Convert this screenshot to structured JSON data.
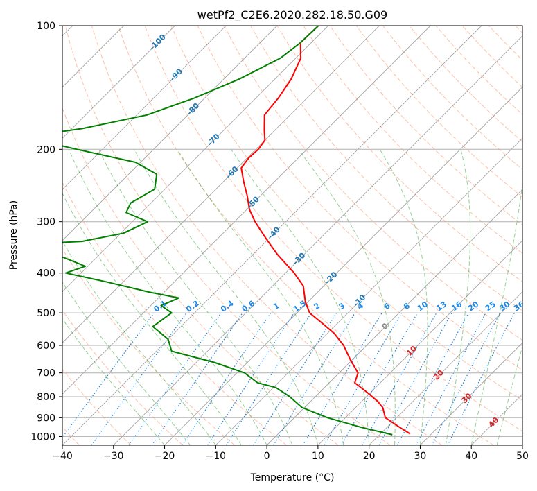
{
  "chart_data": {
    "type": "skew-t",
    "title": "wetPf2_C2E6.2020.282.18.50.G09",
    "xlabel": "Temperature (°C)",
    "ylabel": "Pressure (hPa)",
    "xlim": [
      -40,
      50
    ],
    "ylim": [
      1050,
      100
    ],
    "y_scale": "log",
    "grid": true,
    "skew": 1,
    "xticks": [
      -40,
      -30,
      -20,
      -10,
      0,
      10,
      20,
      30,
      40,
      50
    ],
    "yticks": [
      100,
      200,
      300,
      400,
      500,
      600,
      700,
      800,
      900,
      1000
    ],
    "isotherms_c": [
      -160,
      -150,
      -140,
      -130,
      -120,
      -110,
      -100,
      -90,
      -80,
      -70,
      -60,
      -50,
      -40,
      -30,
      -20,
      -10,
      0,
      10,
      20,
      30,
      40,
      50
    ],
    "dry_adiabat_theta_c": [
      -40,
      -30,
      -20,
      -10,
      0,
      10,
      20,
      30,
      40,
      50,
      60,
      70,
      80,
      90,
      100,
      110,
      120,
      130,
      140,
      150,
      160,
      170,
      180,
      190,
      200,
      210,
      220,
      230,
      240,
      250,
      260
    ],
    "moist_adiabat_start_c": [
      -20,
      -15,
      -10,
      -5,
      0,
      5,
      10,
      15,
      20,
      25,
      30,
      35,
      40,
      45
    ],
    "mixing_ratio_lines": [
      "0.1",
      "0.2",
      "0.4",
      "0.6",
      "1",
      "1.5",
      "2",
      "3",
      "4",
      "6",
      "8",
      "10",
      "13",
      "16",
      "20",
      "25",
      "30",
      "36"
    ],
    "mixing_ratio_values": [
      0.1,
      0.2,
      0.4,
      0.6,
      1,
      1.5,
      2,
      3,
      4,
      6,
      8,
      10,
      13,
      16,
      20,
      25,
      30,
      36
    ],
    "temperature_labels": [
      {
        "text": "-100",
        "p": 110,
        "t": -100
      },
      {
        "text": "-90",
        "p": 132,
        "t": -90
      },
      {
        "text": "-80",
        "p": 160,
        "t": -80
      },
      {
        "text": "-70",
        "p": 190,
        "t": -70
      },
      {
        "text": "-60",
        "p": 228,
        "t": -60
      },
      {
        "text": "-50",
        "p": 270,
        "t": -50
      },
      {
        "text": "-40",
        "p": 320,
        "t": -40
      },
      {
        "text": "-30",
        "p": 370,
        "t": -30
      },
      {
        "text": "-20",
        "p": 412,
        "t": -20
      },
      {
        "text": "-10",
        "p": 468,
        "t": -10
      },
      {
        "text": "0",
        "p": 540,
        "t": 0
      },
      {
        "text": "10",
        "p": 620,
        "t": 10
      },
      {
        "text": "20",
        "p": 710,
        "t": 20
      },
      {
        "text": "30",
        "p": 808,
        "t": 30
      },
      {
        "text": "40",
        "p": 925,
        "t": 40
      }
    ],
    "series": [
      {
        "color": "#ff0000",
        "points": [
          [
            100,
            -71.9
          ],
          [
            110,
            -72.1
          ],
          [
            120,
            -69.0
          ],
          [
            135,
            -66.8
          ],
          [
            150,
            -65.6
          ],
          [
            165,
            -65.0
          ],
          [
            180,
            -62.0
          ],
          [
            190,
            -60.0
          ],
          [
            200,
            -59.5
          ],
          [
            210,
            -59.7
          ],
          [
            222,
            -59.2
          ],
          [
            240,
            -56.0
          ],
          [
            260,
            -52.5
          ],
          [
            280,
            -49.5
          ],
          [
            300,
            -46.0
          ],
          [
            330,
            -40.5
          ],
          [
            360,
            -35.3
          ],
          [
            400,
            -28.3
          ],
          [
            430,
            -24.0
          ],
          [
            470,
            -20.5
          ],
          [
            500,
            -17.5
          ],
          [
            530,
            -13.0
          ],
          [
            560,
            -8.8
          ],
          [
            600,
            -4.5
          ],
          [
            650,
            -0.4
          ],
          [
            700,
            3.7
          ],
          [
            740,
            5.0
          ],
          [
            780,
            9.2
          ],
          [
            820,
            13.0
          ],
          [
            850,
            15.3
          ],
          [
            900,
            17.8
          ],
          [
            950,
            22.5
          ],
          [
            985,
            25.8
          ]
        ]
      },
      {
        "color": "#008000",
        "points": [
          [
            100,
            -71.9
          ],
          [
            110,
            -72.1
          ],
          [
            120,
            -73.0
          ],
          [
            135,
            -77.0
          ],
          [
            150,
            -82.0
          ],
          [
            165,
            -88.0
          ],
          [
            178,
            -98.0
          ],
          [
            185,
            -106.0
          ],
          [
            190,
            -104.5
          ],
          [
            200,
            -95.0
          ],
          [
            215,
            -81.0
          ],
          [
            230,
            -74.5
          ],
          [
            250,
            -72.0
          ],
          [
            270,
            -74.0
          ],
          [
            285,
            -73.0
          ],
          [
            300,
            -67.0
          ],
          [
            320,
            -69.5
          ],
          [
            335,
            -76.0
          ],
          [
            345,
            -95.0
          ],
          [
            365,
            -77.0
          ],
          [
            385,
            -70.5
          ],
          [
            400,
            -73.0
          ],
          [
            420,
            -63.5
          ],
          [
            445,
            -53.0
          ],
          [
            460,
            -46.0
          ],
          [
            480,
            -48.0
          ],
          [
            500,
            -44.5
          ],
          [
            540,
            -45.5
          ],
          [
            580,
            -40.0
          ],
          [
            620,
            -37.0
          ],
          [
            660,
            -26.5
          ],
          [
            700,
            -18.5
          ],
          [
            740,
            -14.0
          ],
          [
            760,
            -9.5
          ],
          [
            800,
            -5.0
          ],
          [
            850,
            -0.5
          ],
          [
            900,
            6.5
          ],
          [
            950,
            15.0
          ],
          [
            990,
            22.5
          ]
        ]
      }
    ]
  },
  "colors": {
    "temperature": "#ff0000",
    "dewpoint": "#008000",
    "isotherm": "#666666",
    "dry_adiabat": "#ff7f50",
    "moist_adiabat": "#2ca02c",
    "mixing_ratio": "#1e88e5",
    "isotherm_label_neg": "#1f77b4",
    "isotherm_label_zero": "#888888",
    "isotherm_label_pos": "#d62728",
    "pressure_grid": "#b0b0b0"
  }
}
